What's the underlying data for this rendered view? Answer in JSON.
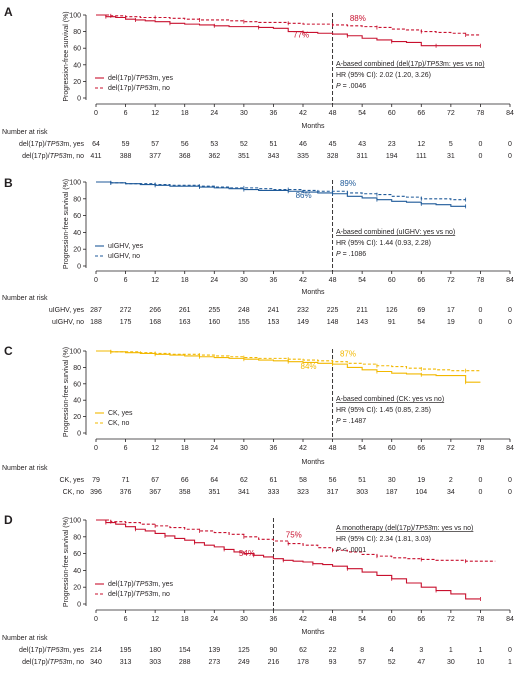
{
  "figure": {
    "ylabel": "Progression-free survival (%)",
    "xlabel": "Months",
    "risk_title": "Number at risk"
  },
  "chart_data": [
    {
      "type": "line",
      "panel": "A",
      "xlim": [
        0,
        84
      ],
      "ylim": [
        0,
        100
      ],
      "xticks": [
        0,
        6,
        12,
        18,
        24,
        30,
        36,
        42,
        48,
        54,
        60,
        66,
        72,
        78,
        84
      ],
      "yticks": [
        0,
        20,
        40,
        60,
        80,
        100
      ],
      "landmark": 48,
      "series": [
        {
          "name": "del(17p)/TP53m, yes",
          "color": "#c8102e",
          "style": "solid",
          "x": [
            0,
            2,
            4,
            6,
            8,
            10,
            12,
            15,
            18,
            21,
            24,
            27,
            30,
            33,
            36,
            39,
            42,
            45,
            48,
            51,
            54,
            57,
            60,
            63,
            66,
            69,
            72,
            75,
            78
          ],
          "y": [
            100,
            98,
            97,
            95,
            94,
            93,
            92,
            90,
            89,
            88,
            87,
            86,
            86,
            85,
            84,
            80,
            79,
            78,
            77,
            75,
            72,
            70,
            68,
            67,
            63,
            63,
            63,
            63,
            63
          ]
        },
        {
          "name": "del(17p)/TP53m, no",
          "color": "#c8102e",
          "style": "dashed",
          "x": [
            0,
            3,
            6,
            9,
            12,
            15,
            18,
            21,
            24,
            27,
            30,
            33,
            36,
            39,
            42,
            45,
            48,
            51,
            54,
            57,
            60,
            63,
            66,
            69,
            72,
            75,
            78
          ],
          "y": [
            100,
            99,
            98,
            97,
            97,
            96,
            95,
            94,
            94,
            93,
            92,
            91,
            91,
            90,
            89,
            89,
            88,
            87,
            86,
            85,
            83,
            82,
            80,
            79,
            78,
            76,
            76
          ]
        }
      ],
      "annotations": [
        {
          "text": "88%",
          "x": 51.5,
          "y": 93,
          "color": "#c8102e"
        },
        {
          "text": "77%",
          "x": 40,
          "y": 73,
          "color": "#c8102e"
        }
      ],
      "stats": {
        "title_prefix": "A-based combined (del(17p)/",
        "title_italic": "TP53",
        "title_suffix": "m: yes vs no)",
        "hr": "HR (95% CI): 2.02 (1.20, 3.26)",
        "p_label": "P",
        "p_value": "= .0046"
      },
      "risk": {
        "labels": [
          "del(17p)/TP53m, yes",
          "del(17p)/TP53m, no"
        ],
        "rows": [
          [
            64,
            59,
            57,
            56,
            53,
            52,
            51,
            46,
            45,
            43,
            23,
            12,
            5,
            0,
            0
          ],
          [
            411,
            388,
            377,
            368,
            362,
            351,
            343,
            335,
            328,
            311,
            194,
            111,
            31,
            0,
            0
          ]
        ]
      }
    },
    {
      "type": "line",
      "panel": "B",
      "xlim": [
        0,
        84
      ],
      "ylim": [
        0,
        100
      ],
      "xticks": [
        0,
        6,
        12,
        18,
        24,
        30,
        36,
        42,
        48,
        54,
        60,
        66,
        72,
        78,
        84
      ],
      "yticks": [
        0,
        20,
        40,
        60,
        80,
        100
      ],
      "landmark": 48,
      "series": [
        {
          "name": "uIGHV, yes",
          "color": "#1f5a99",
          "style": "solid",
          "x": [
            0,
            3,
            6,
            9,
            12,
            15,
            18,
            21,
            24,
            27,
            30,
            33,
            36,
            39,
            42,
            45,
            48,
            51,
            54,
            57,
            60,
            63,
            66,
            69,
            72,
            75
          ],
          "y": [
            100,
            99,
            98,
            97,
            96,
            95,
            95,
            94,
            93,
            92,
            91,
            90,
            90,
            89,
            88,
            87,
            86,
            83,
            81,
            79,
            77,
            76,
            74,
            73,
            71,
            71
          ]
        },
        {
          "name": "uIGHV, no",
          "color": "#1f5a99",
          "style": "dashed",
          "x": [
            0,
            3,
            6,
            9,
            12,
            15,
            18,
            21,
            24,
            27,
            30,
            33,
            36,
            39,
            42,
            45,
            48,
            51,
            54,
            57,
            60,
            63,
            66,
            69,
            72,
            75
          ],
          "y": [
            100,
            99,
            98,
            98,
            97,
            96,
            96,
            95,
            94,
            93,
            93,
            92,
            91,
            91,
            90,
            89,
            89,
            87,
            86,
            85,
            83,
            82,
            80,
            80,
            79,
            79
          ]
        }
      ],
      "annotations": [
        {
          "text": "89%",
          "x": 49.5,
          "y": 95,
          "color": "#1f5a99"
        },
        {
          "text": "86%",
          "x": 40.5,
          "y": 81,
          "color": "#1f5a99"
        }
      ],
      "stats": {
        "title_prefix": "A-based combined (uIGHV: yes vs no)",
        "title_italic": "",
        "title_suffix": "",
        "hr": "HR (95% CI): 1.44 (0.93, 2.28)",
        "p_label": "P",
        "p_value": "= .1086"
      },
      "risk": {
        "labels": [
          "uIGHV, yes",
          "uIGHV, no"
        ],
        "rows": [
          [
            287,
            272,
            266,
            261,
            255,
            248,
            241,
            232,
            225,
            211,
            126,
            69,
            17,
            0,
            0
          ],
          [
            188,
            175,
            168,
            163,
            160,
            155,
            153,
            149,
            148,
            143,
            91,
            54,
            19,
            0,
            0
          ]
        ]
      }
    },
    {
      "type": "line",
      "panel": "C",
      "xlim": [
        0,
        84
      ],
      "ylim": [
        0,
        100
      ],
      "xticks": [
        0,
        6,
        12,
        18,
        24,
        30,
        36,
        42,
        48,
        54,
        60,
        66,
        72,
        78,
        84
      ],
      "yticks": [
        0,
        20,
        40,
        60,
        80,
        100
      ],
      "landmark": 48,
      "series": [
        {
          "name": "CK, yes",
          "color": "#f2b800",
          "style": "solid",
          "x": [
            0,
            3,
            6,
            9,
            12,
            15,
            18,
            21,
            24,
            27,
            30,
            33,
            36,
            39,
            42,
            45,
            48,
            51,
            54,
            57,
            60,
            63,
            66,
            69,
            72,
            75,
            78
          ],
          "y": [
            100,
            99,
            98,
            97,
            96,
            95,
            94,
            93,
            92,
            91,
            90,
            89,
            88,
            87,
            86,
            85,
            84,
            80,
            77,
            75,
            73,
            72,
            71,
            70,
            70,
            62,
            62
          ]
        },
        {
          "name": "CK, no",
          "color": "#f2b800",
          "style": "dashed",
          "x": [
            0,
            3,
            6,
            9,
            12,
            15,
            18,
            21,
            24,
            27,
            30,
            33,
            36,
            39,
            42,
            45,
            48,
            51,
            54,
            57,
            60,
            63,
            66,
            69,
            72,
            75,
            78
          ],
          "y": [
            100,
            99,
            99,
            98,
            97,
            96,
            96,
            95,
            94,
            93,
            92,
            91,
            91,
            90,
            89,
            88,
            87,
            85,
            84,
            82,
            81,
            79,
            78,
            77,
            76,
            76,
            76
          ]
        }
      ],
      "annotations": [
        {
          "text": "87%",
          "x": 49.5,
          "y": 93,
          "color": "#f2b800"
        },
        {
          "text": "84%",
          "x": 41.5,
          "y": 78,
          "color": "#f2b800"
        }
      ],
      "stats": {
        "title_prefix": "A-based combined (CK: yes vs no)",
        "title_italic": "",
        "title_suffix": "",
        "hr": "HR (95% CI): 1.45 (0.85, 2.35)",
        "p_label": "P",
        "p_value": "= .1487"
      },
      "risk": {
        "labels": [
          "CK, yes",
          "CK, no"
        ],
        "rows": [
          [
            79,
            71,
            67,
            66,
            64,
            62,
            61,
            58,
            56,
            51,
            30,
            19,
            2,
            0,
            0
          ],
          [
            396,
            376,
            367,
            358,
            351,
            341,
            333,
            323,
            317,
            303,
            187,
            104,
            34,
            0,
            0
          ]
        ]
      }
    },
    {
      "type": "line",
      "panel": "D",
      "xlim": [
        0,
        84
      ],
      "ylim": [
        0,
        100
      ],
      "xticks": [
        0,
        6,
        12,
        18,
        24,
        30,
        36,
        42,
        48,
        54,
        60,
        66,
        72,
        78,
        84
      ],
      "yticks": [
        0,
        20,
        40,
        60,
        80,
        100
      ],
      "landmark": 36,
      "series": [
        {
          "name": "del(17p)/TP53m, yes",
          "color": "#c8102e",
          "style": "solid",
          "x": [
            0,
            2,
            4,
            6,
            8,
            10,
            12,
            14,
            16,
            18,
            20,
            22,
            24,
            26,
            28,
            30,
            32,
            34,
            36,
            38,
            40,
            42,
            44,
            46,
            48,
            51,
            54,
            57,
            60,
            63,
            66,
            69,
            72,
            75,
            78
          ],
          "y": [
            100,
            97,
            95,
            92,
            89,
            87,
            84,
            81,
            78,
            76,
            73,
            70,
            68,
            65,
            62,
            60,
            58,
            56,
            54,
            52,
            51,
            50,
            48,
            47,
            45,
            42,
            38,
            34,
            30,
            25,
            20,
            16,
            12,
            6,
            6
          ]
        },
        {
          "name": "del(17p)/TP53m, no",
          "color": "#c8102e",
          "style": "dashed",
          "x": [
            0,
            3,
            6,
            9,
            12,
            15,
            18,
            21,
            24,
            27,
            30,
            33,
            36,
            39,
            42,
            45,
            48,
            51,
            54,
            57,
            60,
            63,
            66,
            69,
            72,
            75,
            78,
            81
          ],
          "y": [
            100,
            98,
            97,
            95,
            93,
            91,
            89,
            87,
            85,
            83,
            80,
            77,
            75,
            72,
            70,
            67,
            64,
            62,
            59,
            57,
            55,
            54,
            53,
            52,
            52,
            51,
            51,
            51
          ]
        }
      ],
      "annotations": [
        {
          "text": "75%",
          "x": 38.5,
          "y": 79,
          "color": "#c8102e"
        },
        {
          "text": "54%",
          "x": 29,
          "y": 57,
          "color": "#c8102e"
        }
      ],
      "stats": {
        "title_prefix": "A monotherapy (del(17p)/",
        "title_italic": "TP53",
        "title_suffix": "m: yes vs no)",
        "hr": "HR (95% CI): 2.34 (1.81, 3.03)",
        "p_label": "P",
        "p_value": "< .0001"
      },
      "risk": {
        "labels": [
          "del(17p)/TP53m, yes",
          "del(17p)/TP53m, no"
        ],
        "rows": [
          [
            214,
            195,
            180,
            154,
            139,
            125,
            90,
            62,
            22,
            8,
            4,
            3,
            1,
            1,
            0
          ],
          [
            340,
            313,
            303,
            288,
            273,
            249,
            216,
            178,
            93,
            57,
            52,
            47,
            30,
            10,
            1
          ]
        ]
      }
    }
  ]
}
